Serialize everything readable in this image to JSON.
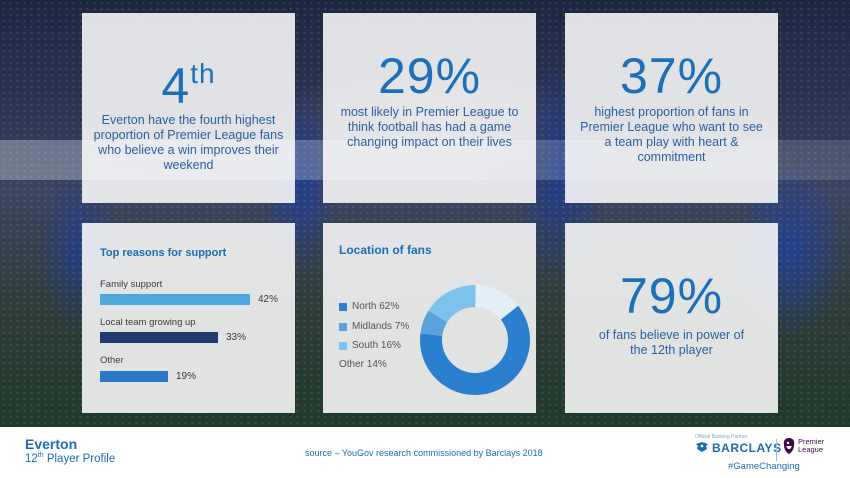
{
  "stats": [
    {
      "value": "4",
      "suffix": "th",
      "text": "Everton have the fourth highest proportion of Premier League fans who believe a win improves their weekend"
    },
    {
      "value": "29%",
      "suffix": "",
      "text": "most likely in Premier League to think football has had a game changing impact on their lives"
    },
    {
      "value": "37%",
      "suffix": "",
      "text": "highest proportion of fans in Premier League who want to see a team play with heart & commitment"
    },
    {
      "value": "79%",
      "suffix": "",
      "text": "of fans believe in power of the 12th player"
    }
  ],
  "reasons": {
    "title": "Top reasons for support",
    "items": [
      {
        "label": "Family support",
        "value": 42,
        "pct": "42%",
        "color": "#4da9e0"
      },
      {
        "label": "Local team growing up",
        "value": 33,
        "pct": "33%",
        "color": "#1e3a6e"
      },
      {
        "label": "Other",
        "value": 19,
        "pct": "19%",
        "color": "#2b78c4"
      }
    ]
  },
  "location": {
    "title": "Location of fans",
    "items": [
      {
        "label": "North 62%",
        "value": 62,
        "color": "#2a7fcf"
      },
      {
        "label": "Midlands 7%",
        "value": 7,
        "color": "#5aa3dc"
      },
      {
        "label": "South 16%",
        "value": 16,
        "color": "#7cc2ea"
      },
      {
        "label": "Other 14%",
        "value": 14,
        "color": "#e4f0f8"
      }
    ]
  },
  "footer": {
    "club": "Everton",
    "profile_prefix": "12",
    "profile_sup": "th",
    "profile_suffix": " Player Profile",
    "source": "source – YouGov research commissioned by Barclays 2018",
    "partner": "Official Banking Partner",
    "barclays": "BARCLAYS",
    "pl_line1": "Premier",
    "pl_line2": "League",
    "hashtag": "#GameChanging"
  },
  "colors": {
    "accent": "#1d6cb5",
    "stat": "#1c6fb8"
  }
}
